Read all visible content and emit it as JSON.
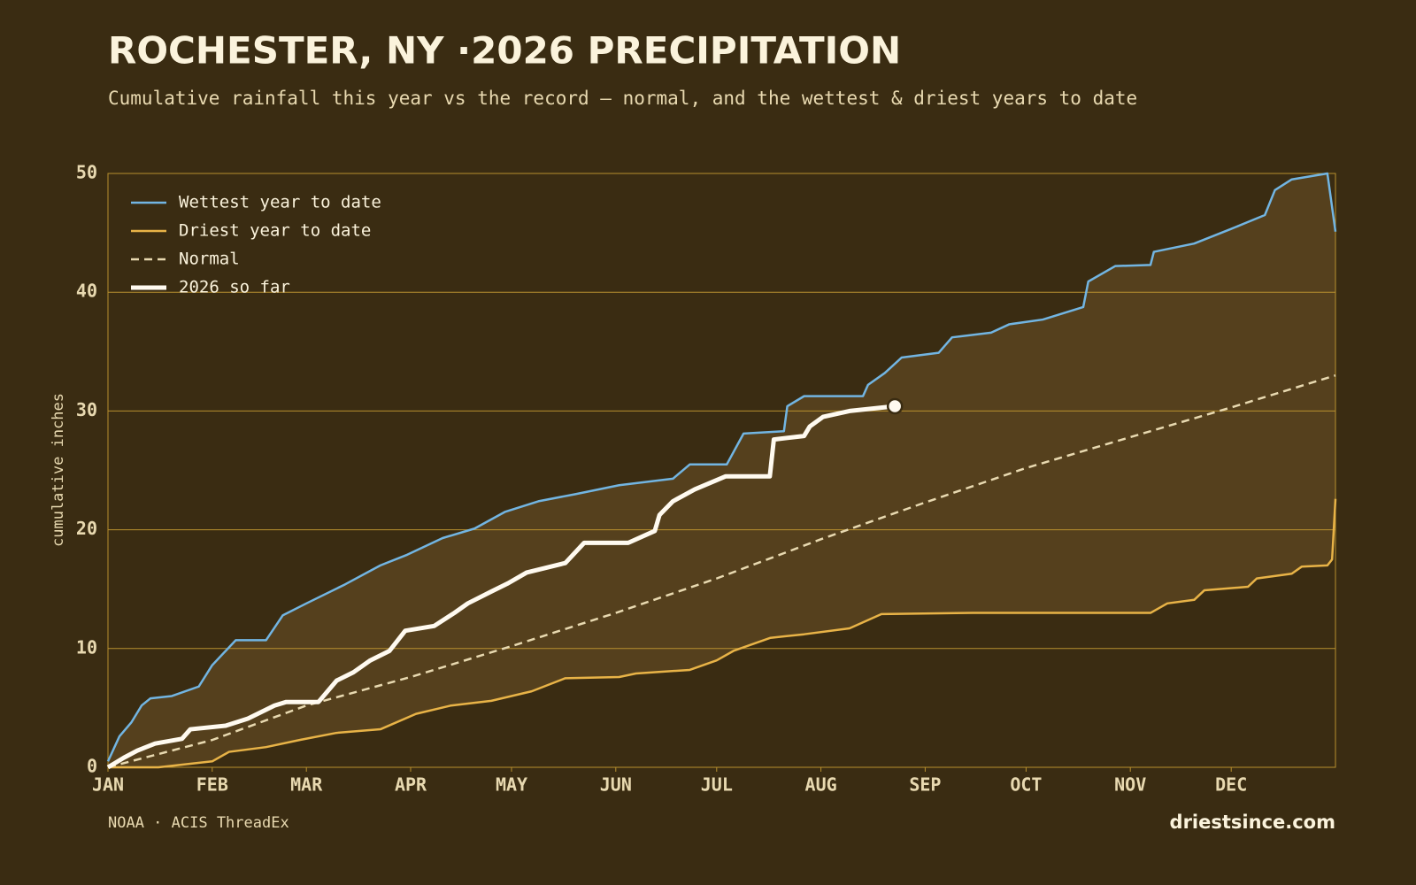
{
  "chart_data": {
    "type": "line",
    "title": "ROCHESTER, NY ·2026 PRECIPITATION",
    "subtitle": "Cumulative rainfall this year vs the record — normal, and the wettest & driest years to date",
    "y_label": "cumulative inches",
    "source": "NOAA · ACIS ThreadEx",
    "brand": "driestsince.com",
    "xlim": [
      0,
      365
    ],
    "xticks": [
      {
        "value": 0,
        "label": "JAN"
      },
      {
        "value": 31,
        "label": "FEB"
      },
      {
        "value": 59,
        "label": "MAR"
      },
      {
        "value": 90,
        "label": "APR"
      },
      {
        "value": 120,
        "label": "MAY"
      },
      {
        "value": 151,
        "label": "JUN"
      },
      {
        "value": 181,
        "label": "JUL"
      },
      {
        "value": 212,
        "label": "AUG"
      },
      {
        "value": 243,
        "label": "SEP"
      },
      {
        "value": 273,
        "label": "OCT"
      },
      {
        "value": 304,
        "label": "NOV"
      },
      {
        "value": 334,
        "label": "DEC"
      }
    ],
    "ylim": [
      0,
      50
    ],
    "yticks": [
      0,
      10,
      20,
      30,
      40,
      50
    ],
    "grid": true,
    "legend": "upper left",
    "range_fill": "#55401d",
    "series": [
      {
        "name": "Wettest year to date",
        "color": "#72b5e2",
        "x": [
          0,
          3.4,
          7,
          10,
          12.6,
          19,
          27,
          31,
          38,
          47,
          52,
          59,
          70.5,
          81,
          89,
          99.5,
          109,
          118,
          128,
          139,
          152,
          168,
          173,
          184,
          189,
          201,
          202,
          207,
          224.5,
          226,
          231,
          236,
          247,
          251,
          262.6,
          268,
          278,
          290,
          291.5,
          299.5,
          310,
          311,
          323,
          333.7,
          344,
          347,
          352,
          362.6,
          365
        ],
        "values": [
          0.5,
          2.6,
          3.8,
          5.2,
          5.8,
          6.0,
          6.8,
          8.6,
          10.7,
          10.7,
          12.8,
          13.8,
          15.4,
          17.0,
          17.9,
          19.3,
          20.1,
          21.5,
          22.4,
          23.0,
          23.75,
          24.3,
          25.5,
          25.5,
          28.1,
          28.3,
          30.4,
          31.25,
          31.25,
          32.2,
          33.2,
          34.5,
          34.9,
          36.2,
          36.6,
          37.3,
          37.7,
          38.75,
          40.9,
          42.2,
          42.3,
          43.4,
          44.1,
          45.3,
          46.5,
          48.6,
          49.5,
          50.0,
          45.1
        ]
      },
      {
        "name": "Driest year to date",
        "color": "#e8b347",
        "x": [
          0,
          15,
          31,
          36,
          47,
          57,
          68,
          81,
          91.6,
          102,
          114,
          126,
          136,
          152,
          157,
          173,
          181,
          186,
          197,
          207,
          220.5,
          230,
          257,
          310,
          315,
          323,
          326,
          339,
          341.6,
          352,
          355,
          362.6,
          364,
          365
        ],
        "values": [
          0,
          0,
          0.5,
          1.3,
          1.7,
          2.3,
          2.9,
          3.2,
          4.5,
          5.2,
          5.6,
          6.4,
          7.5,
          7.6,
          7.9,
          8.2,
          9.0,
          9.8,
          10.9,
          11.2,
          11.7,
          12.9,
          13.0,
          13.0,
          13.8,
          14.1,
          14.9,
          15.2,
          15.9,
          16.3,
          16.9,
          17.0,
          17.5,
          22.6
        ]
      },
      {
        "name": "Normal",
        "color": "#e8d9b0",
        "dashed": true,
        "x": [
          0,
          31,
          59,
          90,
          120,
          151,
          181,
          212,
          243,
          273,
          304,
          334,
          365
        ],
        "values": [
          0,
          2.3,
          5.2,
          7.6,
          10.2,
          13.0,
          15.9,
          19.2,
          22.3,
          25.2,
          27.8,
          30.3,
          33.0
        ]
      },
      {
        "name": "2026 so far",
        "color": "#fffaf0",
        "highlight": true,
        "end_marker": true,
        "x": [
          0,
          4.7,
          8.7,
          14,
          22,
          24.5,
          35,
          41.6,
          49.5,
          53,
          62.6,
          68,
          73,
          78,
          83.7,
          88.4,
          97,
          103,
          107,
          114,
          119,
          124.5,
          136,
          141.6,
          154.7,
          162.6,
          164,
          168,
          174.5,
          183.7,
          196.8,
          198,
          207,
          208.7,
          212.6,
          220.5,
          234
        ],
        "values": [
          0,
          0.8,
          1.4,
          2.0,
          2.4,
          3.2,
          3.5,
          4.1,
          5.2,
          5.5,
          5.5,
          7.3,
          8.0,
          9.0,
          9.8,
          11.5,
          11.9,
          13.0,
          13.8,
          14.8,
          15.5,
          16.4,
          17.2,
          18.9,
          18.9,
          19.9,
          21.25,
          22.4,
          23.4,
          24.5,
          24.5,
          27.6,
          27.9,
          28.7,
          29.5,
          30.0,
          30.4
        ]
      }
    ]
  }
}
